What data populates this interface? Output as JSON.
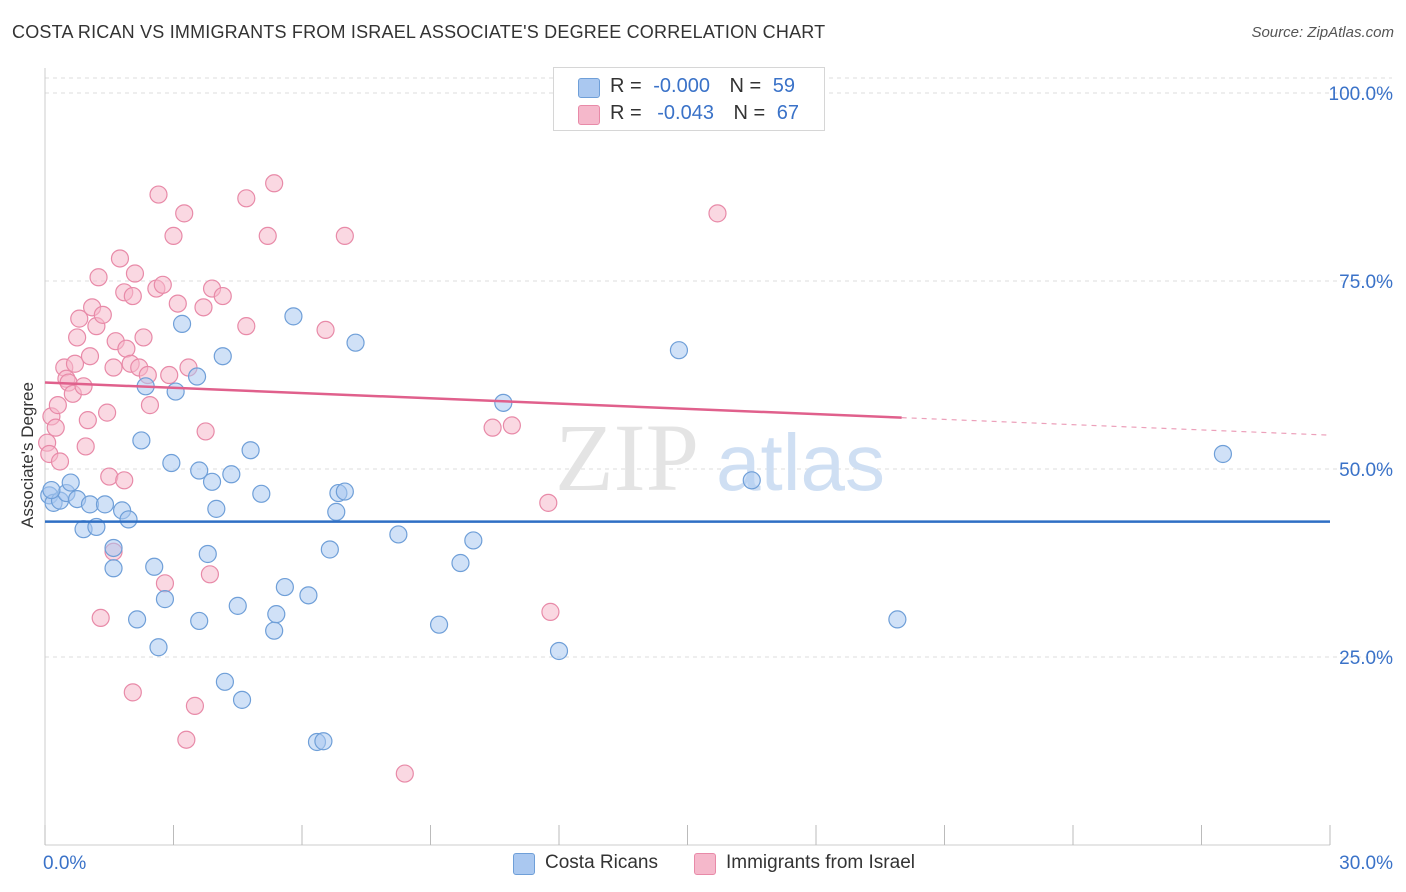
{
  "title": "COSTA RICAN VS IMMIGRANTS FROM ISRAEL ASSOCIATE'S DEGREE CORRELATION CHART",
  "source": "Source: ZipAtlas.com",
  "watermark": {
    "zip": "ZIP",
    "atlas": "atlas"
  },
  "legend": {
    "r_label": "R =",
    "n_label": "N =",
    "rows": [
      {
        "r": "-0.000",
        "n": "59",
        "color": "#aac8f0"
      },
      {
        "r": "-0.043",
        "n": "67",
        "color": "#f5b8cb"
      }
    ]
  },
  "bottom_legend": [
    "Costa Ricans",
    "Immigrants from Israel"
  ],
  "colors": {
    "blue_fill": "#aac8f0",
    "blue_stroke": "#6f9fd8",
    "blue_line": "#2f6fc4",
    "pink_fill": "#f5b8cb",
    "pink_stroke": "#e88aa8",
    "pink_line": "#e0608c",
    "axis_text": "#3a72c8",
    "grid": "#dddddd"
  },
  "chart_data": {
    "type": "scatter",
    "title": "COSTA RICAN VS IMMIGRANTS FROM ISRAEL ASSOCIATE'S DEGREE CORRELATION CHART",
    "xlabel": "",
    "ylabel": "Associate's Degree",
    "xlim": [
      0,
      30
    ],
    "ylim": [
      0,
      102
    ],
    "x_tick_labels": [
      {
        "value": 0,
        "label": "0.0%"
      },
      {
        "value": 30,
        "label": "30.0%"
      }
    ],
    "y_tick_labels": [
      {
        "value": 25,
        "label": "25.0%"
      },
      {
        "value": 50,
        "label": "50.0%"
      },
      {
        "value": 75,
        "label": "75.0%"
      },
      {
        "value": 100,
        "label": "100.0%"
      }
    ],
    "grid": true,
    "legend_position": "top-center",
    "series": [
      {
        "name": "Costa Ricans",
        "r": -0.0,
        "n": 59,
        "trend": {
          "x": [
            0,
            30
          ],
          "y": [
            43.0,
            43.0
          ],
          "solid_until": 30
        },
        "points": [
          [
            0.1,
            46.5
          ],
          [
            0.2,
            45.5
          ],
          [
            0.35,
            45.8
          ],
          [
            0.5,
            46.8
          ],
          [
            0.6,
            48.2
          ],
          [
            0.75,
            46.0
          ],
          [
            0.9,
            42.0
          ],
          [
            1.05,
            45.3
          ],
          [
            1.2,
            42.3
          ],
          [
            1.4,
            45.3
          ],
          [
            1.6,
            39.5
          ],
          [
            1.8,
            44.5
          ],
          [
            1.95,
            43.3
          ],
          [
            1.6,
            36.8
          ],
          [
            2.15,
            30.0
          ],
          [
            2.25,
            53.8
          ],
          [
            2.35,
            61.0
          ],
          [
            2.55,
            37.0
          ],
          [
            2.65,
            26.3
          ],
          [
            2.8,
            32.7
          ],
          [
            2.95,
            50.8
          ],
          [
            3.05,
            60.3
          ],
          [
            3.2,
            69.3
          ],
          [
            3.55,
            62.3
          ],
          [
            3.6,
            49.8
          ],
          [
            3.6,
            29.8
          ],
          [
            3.8,
            38.7
          ],
          [
            3.9,
            48.3
          ],
          [
            4.0,
            44.7
          ],
          [
            4.15,
            65.0
          ],
          [
            4.2,
            21.7
          ],
          [
            4.35,
            49.3
          ],
          [
            4.5,
            31.8
          ],
          [
            4.6,
            19.3
          ],
          [
            4.8,
            52.5
          ],
          [
            5.05,
            46.7
          ],
          [
            5.35,
            28.5
          ],
          [
            5.4,
            30.7
          ],
          [
            5.6,
            34.3
          ],
          [
            5.8,
            70.3
          ],
          [
            6.15,
            33.2
          ],
          [
            6.35,
            13.7
          ],
          [
            6.5,
            13.8
          ],
          [
            6.65,
            39.3
          ],
          [
            6.8,
            44.3
          ],
          [
            6.85,
            46.8
          ],
          [
            7.0,
            47.0
          ],
          [
            7.25,
            66.8
          ],
          [
            8.25,
            41.3
          ],
          [
            9.2,
            29.3
          ],
          [
            9.7,
            37.5
          ],
          [
            10.0,
            40.5
          ],
          [
            10.7,
            58.8
          ],
          [
            12.0,
            25.8
          ],
          [
            14.8,
            65.8
          ],
          [
            16.5,
            48.5
          ],
          [
            19.9,
            30.0
          ],
          [
            27.5,
            52.0
          ],
          [
            0.15,
            47.2
          ]
        ]
      },
      {
        "name": "Immigrants from Israel",
        "r": -0.043,
        "n": 67,
        "trend": {
          "x": [
            0,
            30
          ],
          "y": [
            61.5,
            54.5
          ],
          "solid_until": 20.0
        },
        "points": [
          [
            0.05,
            53.5
          ],
          [
            0.1,
            52.0
          ],
          [
            0.15,
            57.0
          ],
          [
            0.25,
            55.5
          ],
          [
            0.3,
            58.5
          ],
          [
            0.35,
            51.0
          ],
          [
            0.45,
            63.5
          ],
          [
            0.5,
            62.0
          ],
          [
            0.55,
            61.5
          ],
          [
            0.65,
            60.0
          ],
          [
            0.7,
            64.0
          ],
          [
            0.75,
            67.5
          ],
          [
            0.8,
            70.0
          ],
          [
            0.9,
            61.0
          ],
          [
            0.95,
            53.0
          ],
          [
            1.0,
            56.5
          ],
          [
            1.05,
            65.0
          ],
          [
            1.1,
            71.5
          ],
          [
            1.2,
            69.0
          ],
          [
            1.25,
            75.5
          ],
          [
            1.35,
            70.5
          ],
          [
            1.45,
            57.5
          ],
          [
            1.5,
            49.0
          ],
          [
            1.6,
            63.5
          ],
          [
            1.65,
            67.0
          ],
          [
            1.75,
            78.0
          ],
          [
            1.85,
            73.5
          ],
          [
            1.9,
            66.0
          ],
          [
            2.0,
            64.0
          ],
          [
            2.05,
            73.0
          ],
          [
            2.1,
            76.0
          ],
          [
            2.2,
            63.5
          ],
          [
            2.3,
            67.5
          ],
          [
            2.4,
            62.5
          ],
          [
            2.45,
            58.5
          ],
          [
            2.6,
            74.0
          ],
          [
            2.65,
            86.5
          ],
          [
            2.75,
            74.5
          ],
          [
            2.8,
            34.8
          ],
          [
            2.9,
            62.5
          ],
          [
            3.0,
            81.0
          ],
          [
            3.1,
            72.0
          ],
          [
            3.25,
            84.0
          ],
          [
            3.35,
            63.5
          ],
          [
            3.5,
            18.5
          ],
          [
            3.7,
            71.5
          ],
          [
            3.75,
            55.0
          ],
          [
            3.85,
            36.0
          ],
          [
            3.9,
            74.0
          ],
          [
            4.15,
            73.0
          ],
          [
            4.7,
            86.0
          ],
          [
            4.7,
            69.0
          ],
          [
            5.2,
            81.0
          ],
          [
            5.35,
            88.0
          ],
          [
            6.55,
            68.5
          ],
          [
            7.0,
            81.0
          ],
          [
            8.4,
            9.5
          ],
          [
            10.45,
            55.5
          ],
          [
            10.9,
            55.8
          ],
          [
            11.75,
            45.5
          ],
          [
            11.8,
            31.0
          ],
          [
            15.7,
            84.0
          ],
          [
            1.3,
            30.2
          ],
          [
            2.05,
            20.3
          ],
          [
            3.3,
            14.0
          ],
          [
            1.6,
            39.0
          ],
          [
            1.85,
            48.5
          ]
        ]
      }
    ]
  }
}
